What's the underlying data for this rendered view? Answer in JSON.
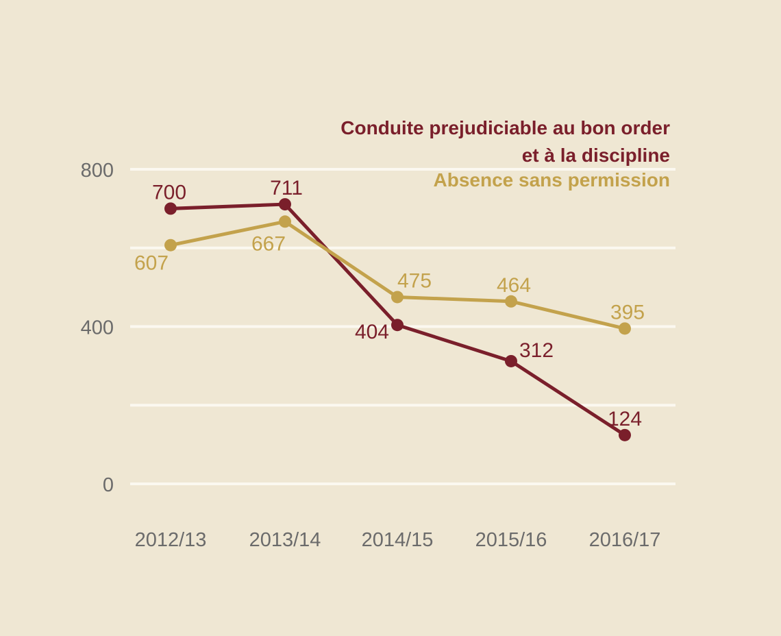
{
  "chart_data": {
    "type": "line",
    "categories": [
      "2012/13",
      "2013/14",
      "2014/15",
      "2015/16",
      "2016/17"
    ],
    "ylim": [
      0,
      800
    ],
    "yticks": [
      0,
      400,
      800
    ],
    "gridlines": [
      0,
      200,
      400,
      600,
      800
    ],
    "grid": true,
    "legend_position": "top-right",
    "series": [
      {
        "name": "Conduite prejudiciable au bon order et à la discipline",
        "name_lines": [
          "Conduite prejudiciable au bon order",
          "et à la discipline"
        ],
        "color": "#7a1f2b",
        "values": [
          700,
          711,
          404,
          312,
          124
        ],
        "labels": [
          "700",
          "711",
          "404",
          "312",
          "124"
        ]
      },
      {
        "name": "Absence sans permission",
        "name_lines": [
          "Absence sans permission"
        ],
        "color": "#c3a24c",
        "values": [
          607,
          667,
          475,
          464,
          395
        ],
        "labels": [
          "607",
          "667",
          "475",
          "464",
          "395"
        ]
      }
    ],
    "colors": {
      "background": "#efe7d3",
      "grid": "#fbf8f0",
      "axis_text": "#6b6b6b"
    }
  }
}
